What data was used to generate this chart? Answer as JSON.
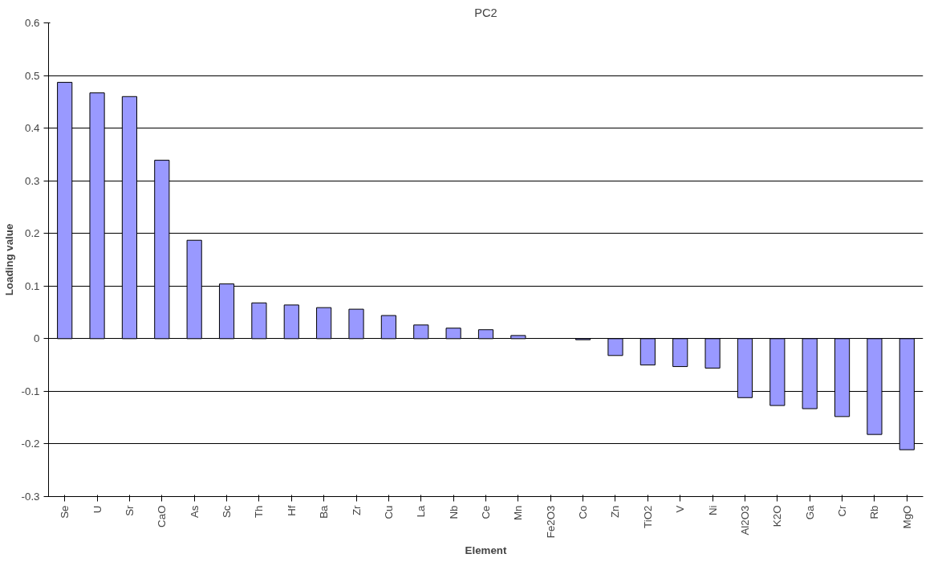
{
  "chart_data": {
    "type": "bar",
    "title": "PC2",
    "xlabel": "Element",
    "ylabel": "Loading value",
    "categories": [
      "Se",
      "U",
      "Sr",
      "CaO",
      "As",
      "Sc",
      "Th",
      "Hf",
      "Ba",
      "Zr",
      "Cu",
      "La",
      "Nb",
      "Ce",
      "Mn",
      "Fe2O3",
      "Co",
      "Zn",
      "TiO2",
      "V",
      "Ni",
      "Al2O3",
      "K2O",
      "Ga",
      "Cr",
      "Rb",
      "MgO"
    ],
    "values": [
      0.487,
      0.467,
      0.46,
      0.339,
      0.187,
      0.104,
      0.068,
      0.064,
      0.059,
      0.056,
      0.044,
      0.026,
      0.02,
      0.017,
      0.006,
      null,
      -0.002,
      -0.032,
      -0.05,
      -0.053,
      -0.056,
      -0.112,
      -0.127,
      -0.133,
      -0.148,
      -0.182,
      -0.211
    ],
    "color": "#9999ff",
    "ylim": [
      -0.3,
      0.6
    ],
    "yticks": [
      -0.3,
      -0.2,
      -0.1,
      0,
      0.1,
      0.2,
      0.3,
      0.4,
      0.5,
      0.6
    ],
    "grid": "y"
  }
}
